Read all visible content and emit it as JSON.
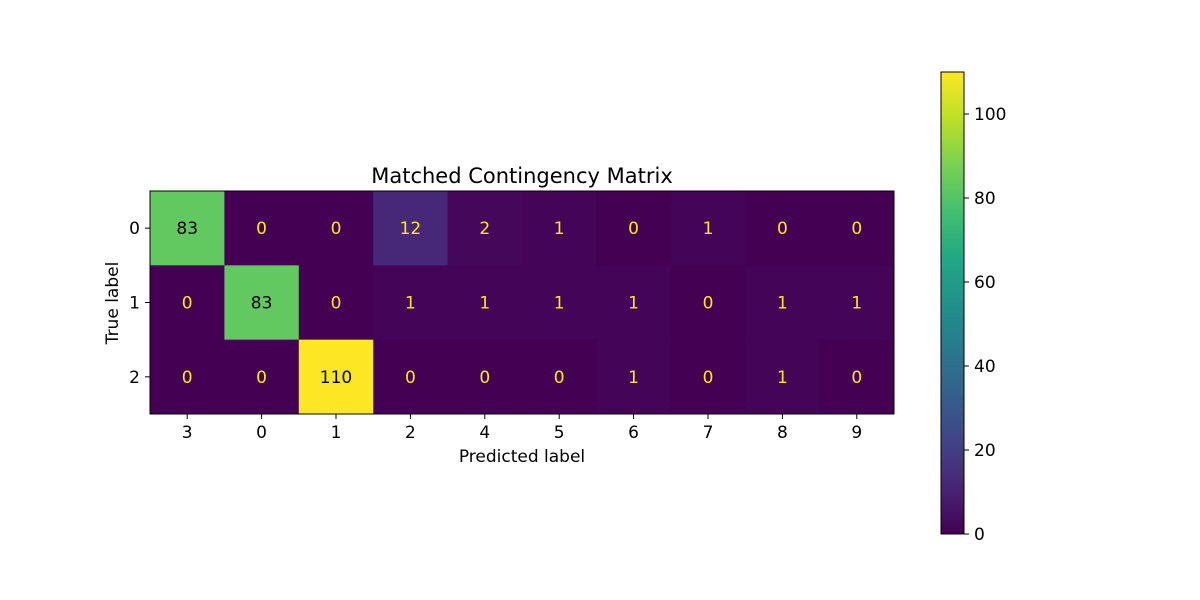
{
  "chart_data": {
    "type": "heatmap",
    "title": "Matched Contingency Matrix",
    "xlabel": "Predicted label",
    "ylabel": "True label",
    "x_categories": [
      "3",
      "0",
      "1",
      "2",
      "4",
      "5",
      "6",
      "7",
      "8",
      "9"
    ],
    "y_categories": [
      "0",
      "1",
      "2"
    ],
    "values": [
      [
        83,
        0,
        0,
        12,
        2,
        1,
        0,
        1,
        0,
        0
      ],
      [
        0,
        83,
        0,
        1,
        1,
        1,
        1,
        0,
        1,
        1
      ],
      [
        0,
        0,
        110,
        0,
        0,
        0,
        1,
        0,
        1,
        0
      ]
    ],
    "colormap": "viridis",
    "vmin": 0,
    "vmax": 110,
    "colorbar_ticks": [
      0,
      20,
      40,
      60,
      80,
      100
    ],
    "text_color_light": "#fde725",
    "text_color_dark": "#000000"
  }
}
